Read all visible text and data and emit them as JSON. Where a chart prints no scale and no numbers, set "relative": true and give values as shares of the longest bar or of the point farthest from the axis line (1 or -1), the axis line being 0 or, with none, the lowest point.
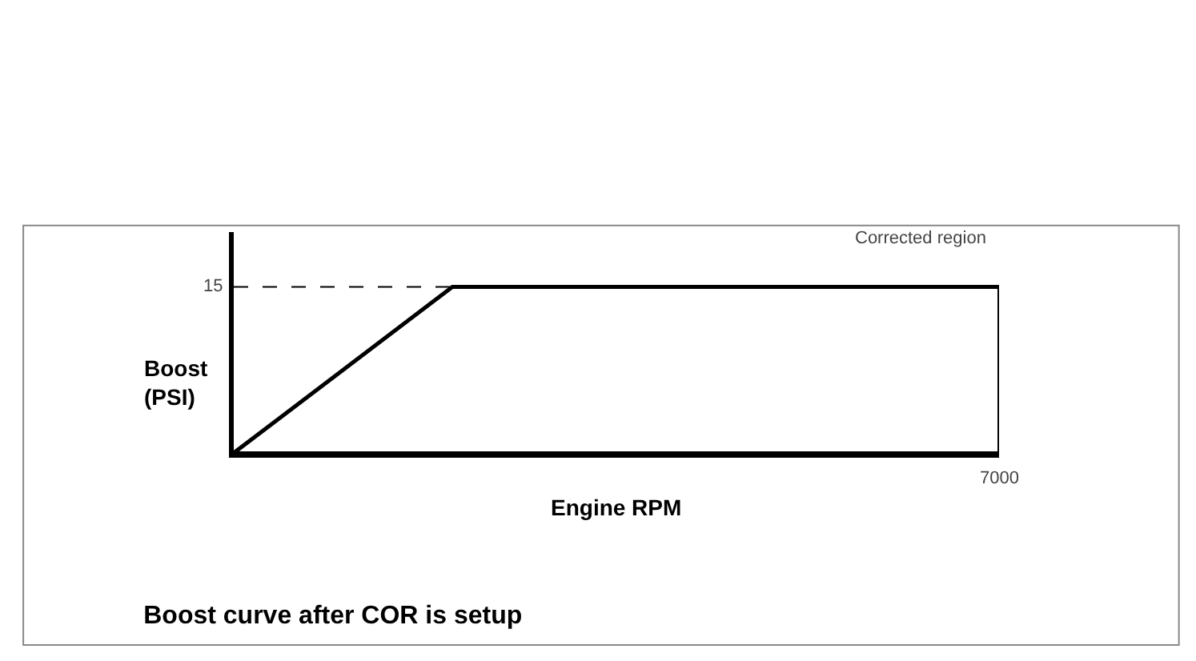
{
  "chart_data": {
    "type": "line",
    "title": "Boost curve after COR is setup",
    "xlabel": "Engine RPM",
    "ylabel": "Boost\n(PSI)",
    "relative": true,
    "categories": [
      null,
      null,
      null,
      null,
      null,
      null,
      null,
      null
    ],
    "series": [
      {
        "color": "#000000",
        "values": [
          0,
          0.5,
          1,
          1,
          1,
          1,
          1,
          1
        ]
      }
    ],
    "ref_lines": [
      {
        "axis": "y",
        "value": 1,
        "color": "#000000",
        "line_style": "dashed"
      }
    ],
    "bands": [
      {
        "axis": "y",
        "from": 0,
        "to": 1,
        "label": "Corrected region"
      }
    ],
    "annotations": [
      "15",
      "7000"
    ],
    "marker": "none",
    "line_style": "solid"
  }
}
